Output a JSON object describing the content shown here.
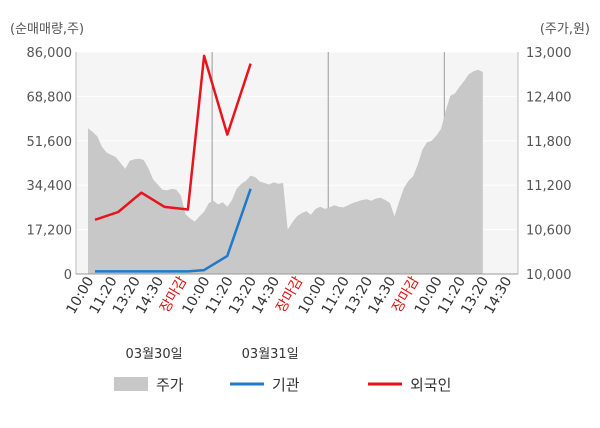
{
  "chart_data": {
    "type": "line",
    "left_axis_unit": "(순매매량,주)",
    "right_axis_unit": "(주가,원)",
    "left_ticks": [
      "86,000",
      "68,800",
      "51,600",
      "34,400",
      "17,200",
      "0"
    ],
    "left_ylim": [
      0,
      86000
    ],
    "right_ticks": [
      "13,000",
      "12,400",
      "11,800",
      "11,200",
      "10,600",
      "10,000"
    ],
    "right_ylim": [
      10000,
      13000
    ],
    "x_ticks": [
      {
        "label": "10:00",
        "slot": 0,
        "red": false
      },
      {
        "label": "11:20",
        "slot": 1,
        "red": false
      },
      {
        "label": "13:20",
        "slot": 2,
        "red": false
      },
      {
        "label": "14:30",
        "slot": 3,
        "red": false
      },
      {
        "label": "장마감",
        "slot": 4,
        "red": true
      },
      {
        "label": "10:00",
        "slot": 5,
        "red": false
      },
      {
        "label": "11:20",
        "slot": 6,
        "red": false
      },
      {
        "label": "13:20",
        "slot": 7,
        "red": false
      },
      {
        "label": "14:30",
        "slot": 8,
        "red": false
      },
      {
        "label": "장마감",
        "slot": 9,
        "red": true
      },
      {
        "label": "10:00",
        "slot": 10,
        "red": false
      },
      {
        "label": "11:20",
        "slot": 11,
        "red": false
      },
      {
        "label": "13:20",
        "slot": 12,
        "red": false
      },
      {
        "label": "14:30",
        "slot": 13,
        "red": false
      },
      {
        "label": "장마감",
        "slot": 14,
        "red": true
      },
      {
        "label": "10:00",
        "slot": 15,
        "red": false
      },
      {
        "label": "11:20",
        "slot": 16,
        "red": false
      },
      {
        "label": "13:20",
        "slot": 17,
        "red": false
      },
      {
        "label": "14:30",
        "slot": 18,
        "red": false
      }
    ],
    "dates": [
      {
        "label": "03월30일",
        "slot": 2.5
      },
      {
        "label": "03월31일",
        "slot": 7.5
      }
    ],
    "day_separators": [
      5,
      10,
      15
    ],
    "series": [
      {
        "name": "주가",
        "axis": "right",
        "kind": "area",
        "color": "#c8c8c8",
        "x": [
          0,
          0.2,
          0.4,
          0.6,
          0.8,
          1.0,
          1.2,
          1.4,
          1.6,
          1.8,
          2.0,
          2.2,
          2.4,
          2.6,
          2.8,
          3.0,
          3.2,
          3.4,
          3.6,
          3.8,
          4.0,
          4.2,
          4.4,
          4.6,
          4.8,
          5.0,
          5.2,
          5.4,
          5.6,
          5.8,
          6.0,
          6.2,
          6.4,
          6.6,
          6.8,
          7.0,
          7.2,
          7.4,
          7.6,
          7.8,
          8.0,
          8.2,
          8.4,
          8.6,
          8.8,
          9.0,
          9.2,
          9.4,
          9.6,
          9.8,
          10.0,
          10.2,
          10.4,
          10.6,
          10.8,
          11.0,
          11.2,
          11.4,
          11.6,
          11.8,
          12.0,
          12.2,
          12.4,
          12.6,
          12.8,
          13.0,
          13.2,
          13.4,
          13.6,
          13.8,
          14.0,
          14.2,
          14.4,
          14.6,
          14.8,
          15.0,
          15.2,
          15.4,
          15.6,
          15.8,
          16.0,
          16.2,
          16.4,
          16.6,
          16.8,
          17.0
        ],
        "values": [
          11970,
          11920,
          11860,
          11720,
          11640,
          11610,
          11580,
          11500,
          11420,
          11530,
          11550,
          11560,
          11540,
          11430,
          11280,
          11210,
          11140,
          11130,
          11150,
          11140,
          11060,
          10810,
          10750,
          10710,
          10780,
          10840,
          10960,
          10990,
          10940,
          10970,
          10910,
          11000,
          11150,
          11220,
          11260,
          11330,
          11310,
          11250,
          11230,
          11210,
          11240,
          11220,
          11230,
          10600,
          10700,
          10780,
          10820,
          10850,
          10800,
          10880,
          10910,
          10880,
          10900,
          10930,
          10910,
          10900,
          10930,
          10960,
          10980,
          11000,
          11010,
          10990,
          11020,
          11030,
          11000,
          10960,
          10780,
          10980,
          11160,
          11260,
          11320,
          11480,
          11680,
          11780,
          11800,
          11870,
          11960,
          12200,
          12410,
          12440,
          12530,
          12610,
          12700,
          12740,
          12760,
          12730
        ]
      },
      {
        "name": "기관",
        "axis": "left",
        "kind": "line",
        "color": "#1f7ac9",
        "x": [
          0.3,
          1.3,
          2.3,
          3.3,
          4.3,
          5.0,
          6.0,
          7.0
        ],
        "values": [
          1000,
          1000,
          1000,
          1000,
          1000,
          1500,
          7000,
          33000
        ]
      },
      {
        "name": "외국인",
        "axis": "left",
        "kind": "line",
        "color": "#e8141c",
        "x": [
          0.3,
          1.3,
          2.3,
          3.3,
          4.3,
          5.0,
          6.0,
          7.0
        ],
        "values": [
          21000,
          24000,
          31500,
          26000,
          25000,
          84500,
          54000,
          81500
        ]
      }
    ],
    "legend": [
      "주가",
      "기관",
      "외국인"
    ],
    "grid": true,
    "legend_position": "bottom"
  }
}
